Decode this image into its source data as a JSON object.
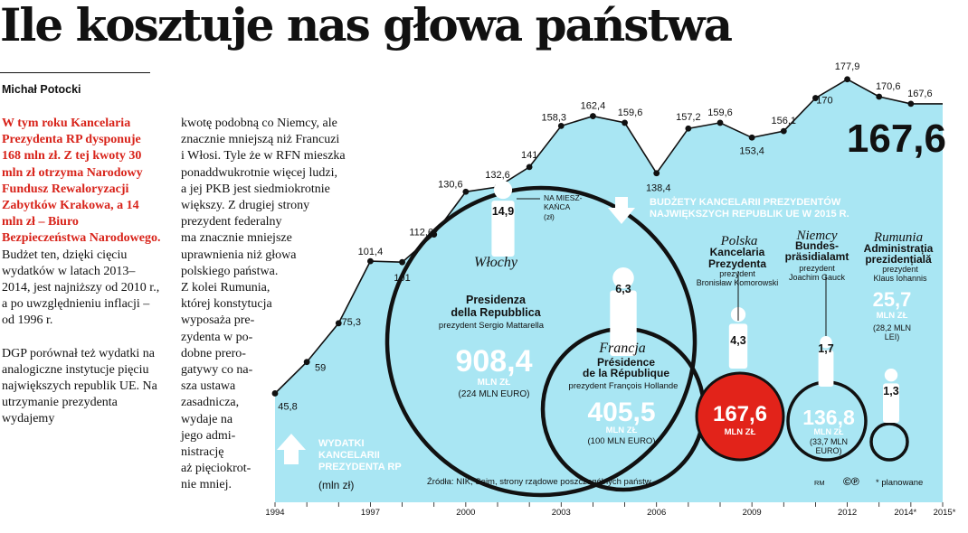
{
  "headline": "Ile kosztuje nas głowa państwa",
  "author": "Michał Potocki",
  "lead": "W tym roku Kancelaria Prezydenta RP dysponuje 168 mln zł. Z tej kwoty 30 mln zł otrzyma Narodowy Fundusz Rewaloryzacji Zabytków Krakowa, a 14 mln zł – Biuro Bezpieczeństwa Narodowego.",
  "col1_text": "Budżet ten, dzięki cięciu wydatków w latach 2013–2014, jest najniższy od 2010 r., a po uwzględnieniu inflacji – od 1996 r.",
  "col1_text2": "DGP porównał też wydatki na analogiczne instytucje pięciu największych republik UE. Na utrzymanie prezydenta wydajemy",
  "col2_lines": [
    "kwotę podobną co Niemcy, ale",
    "znacznie mniejszą niż Francuzi",
    "i Włosi. Tyle że w RFN mieszka",
    "ponaddwukrotnie więcej ludzi,",
    "a jej PKB jest siedmiokrotnie",
    "większy. Z drugiej strony",
    "prezydent federalny",
    "ma znacznie mniejsze",
    "uprawnienia niż głowa",
    "polskiego państwa.",
    "Z kolei Rumunia,",
    "której konstytucja",
    "wyposaża pre-",
    "zydenta w po-",
    "dobne prero-",
    "gatywy co na-",
    "sza ustawa",
    "zasadnicza,",
    "wydaje na",
    "jego admi-",
    "nistrację",
    "aż pięciokrot-",
    "nie mniej."
  ],
  "chart_data": {
    "type": "area",
    "title": "Wydatki Kancelarii Prezydenta RP",
    "unit": "(mln zł)",
    "series_label": "WYDATKI KANCELARII PREZYDENTA RP",
    "x": [
      1994,
      1995,
      1996,
      1997,
      1998,
      1999,
      2000,
      2001,
      2002,
      2003,
      2004,
      2005,
      2006,
      2007,
      2008,
      2009,
      2010,
      2011,
      2012,
      2013,
      2014,
      2015
    ],
    "values": [
      45.8,
      59,
      75.3,
      101.4,
      101,
      112.6,
      130.6,
      132.6,
      141,
      158.3,
      162.4,
      159.6,
      138.4,
      157.2,
      159.6,
      153.4,
      156.1,
      170,
      177.9,
      170.6,
      167.6,
      167.6
    ],
    "labels": [
      "45,8",
      "59",
      "75,3",
      "101,4",
      "101",
      "112,6",
      "130,6",
      "132,6",
      "141",
      "158,3",
      "162,4",
      "159,6",
      "138,4",
      "157,2",
      "159,6",
      "153,4",
      "156,1",
      "170",
      "177,9",
      "170,6",
      "167,6",
      ""
    ],
    "x_ticks": [
      "1994",
      "1997",
      "2000",
      "2003",
      "2006",
      "2009",
      "2012",
      "2014*",
      "2015*"
    ],
    "ylim": [
      0,
      200
    ],
    "highlight_value": "167,6",
    "planned_note": "* planowane",
    "source": "Źródła: NIK, Sejm, strony rządowe poszczególnych państw",
    "credit": "RM",
    "logo": "©℗",
    "colors": {
      "area": "#a9e6f3",
      "accent": "#e2231a",
      "ink": "#111111"
    },
    "compare_title": "BUDŻETY KANCELARII PREZYDENTÓW NAJWIĘKSZYCH REPUBLIK UE W 2015 R.",
    "population_label_1": "NA MIESZ-",
    "population_label_2": "KAŃCA",
    "population_label_3": "(zł)",
    "countries": [
      {
        "country": "Włochy",
        "office_1": "Presidenza",
        "office_2": "della Repubblica",
        "head_1": "prezydent Sergio Mattarella",
        "head_2": "",
        "value": "908,4",
        "unit": "MLN ZŁ",
        "sub_1": "(224 MLN EURO)",
        "sub_2": "",
        "per_capita": "14,9",
        "budget_mln_pln": 908.4
      },
      {
        "country": "Francja",
        "office_1": "Présidence",
        "office_2": "de la République",
        "head_1": "prezydent François Hollande",
        "head_2": "",
        "value": "405,5",
        "unit": "MLN ZŁ",
        "sub_1": "(100 MLN EURO)",
        "sub_2": "",
        "per_capita": "6,3",
        "budget_mln_pln": 405.5
      },
      {
        "country": "Polska",
        "office_1": "Kancelaria",
        "office_2": "Prezydenta",
        "head_1": "prezydent",
        "head_2": "Bronisław Komorowski",
        "value": "167,6",
        "unit": "MLN ZŁ",
        "sub_1": "",
        "sub_2": "",
        "per_capita": "4,3",
        "budget_mln_pln": 167.6
      },
      {
        "country": "Niemcy",
        "office_1": "Bundes-",
        "office_2": "präsidialamt",
        "head_1": "prezydent",
        "head_2": "Joachim Gauck",
        "value": "136,8",
        "unit": "MLN ZŁ",
        "sub_1": "(33,7 MLN",
        "sub_2": "EURO)",
        "per_capita": "1,7",
        "budget_mln_pln": 136.8
      },
      {
        "country": "Rumunia",
        "office_1": "Administrația",
        "office_2": "prezidențială",
        "head_1": "prezydent",
        "head_2": "Klaus Iohannis",
        "value": "25,7",
        "unit": "MLN ZŁ",
        "sub_1": "(28,2 MLN",
        "sub_2": "LEI)",
        "per_capita": "1,3",
        "budget_mln_pln": 25.7
      }
    ]
  }
}
